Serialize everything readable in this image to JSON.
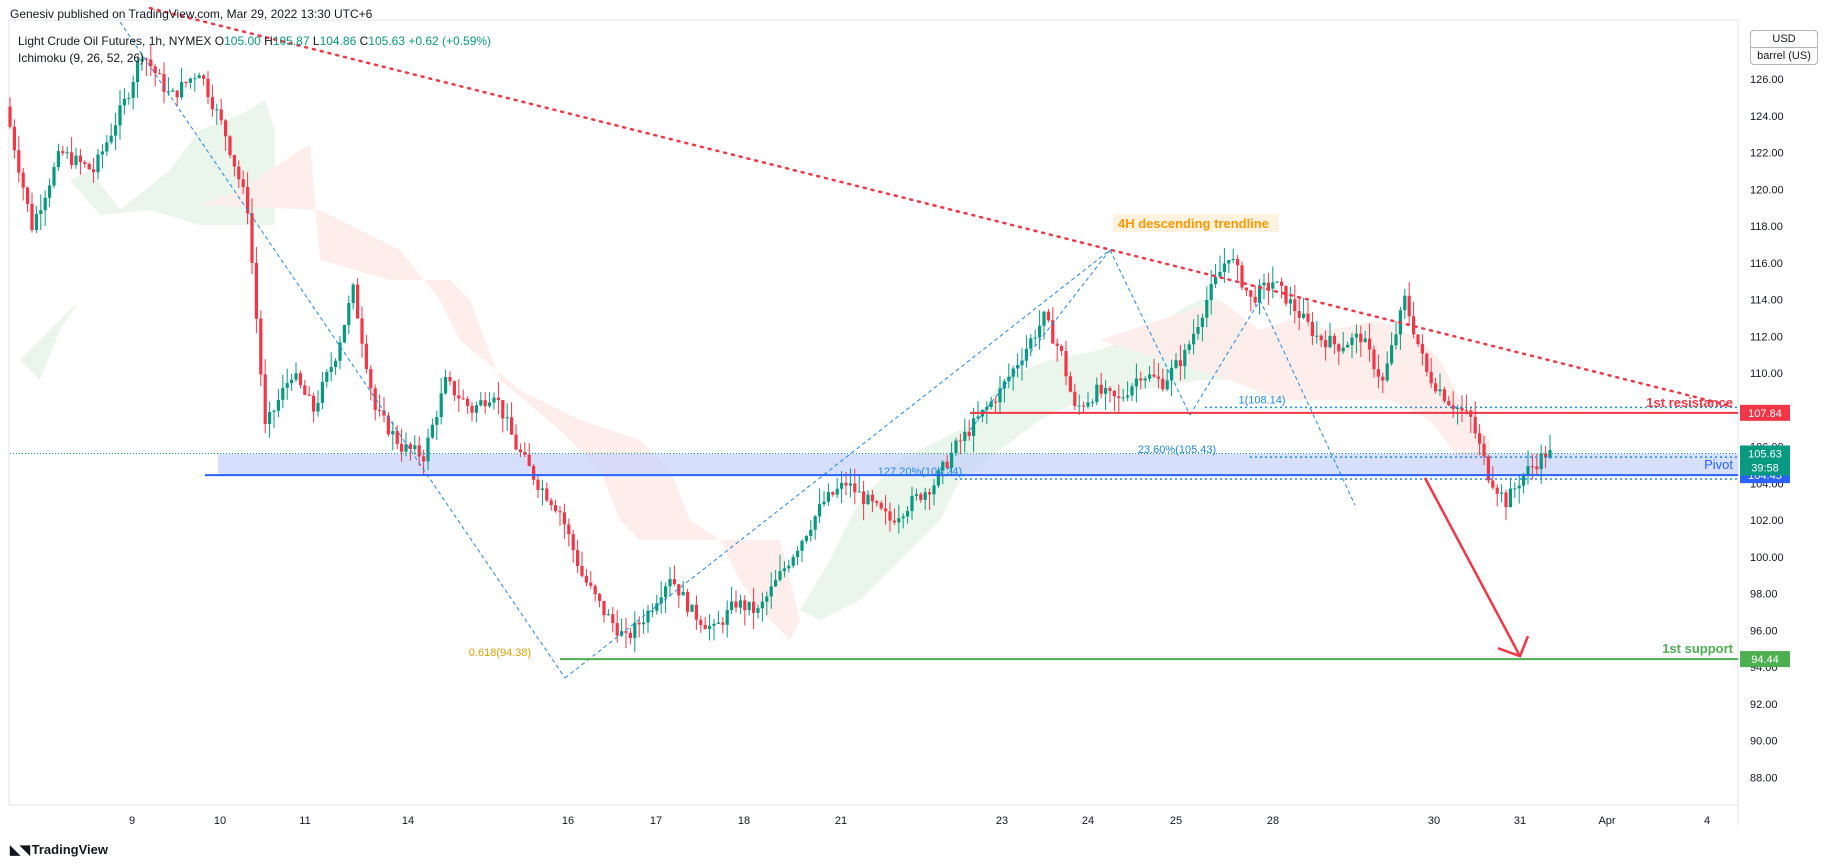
{
  "publisher_line": "Genesiv published on TradingView.com, Mar 29, 2022 13:30 UTC+6",
  "legend": {
    "symbol": "Light Crude Oil Futures, 1h, NYMEX",
    "open_label": "O",
    "open": "105.00",
    "high_label": "H",
    "high": "105.87",
    "low_label": "L",
    "low": "104.86",
    "close_label": "C",
    "close": "105.63",
    "change": "+0.62 (+0.59%)",
    "indicator": "Ichimoku (9, 26, 52, 26)"
  },
  "unit_box": {
    "currency": "USD",
    "unit": "barrel (US)"
  },
  "footer": {
    "brand": "TradingView"
  },
  "colors": {
    "up": "#089981",
    "down": "#f23645",
    "trendline": "#f23645",
    "pivot": "#2962ff",
    "support": "#4caf50",
    "fib": "#1e88e5",
    "cloud_bull": "#e8f5e9",
    "cloud_bear": "#fdecea"
  },
  "chart_data": {
    "type": "candlestick",
    "ylim": [
      86.5,
      129
    ],
    "y_ticks": [
      "88.00",
      "90.00",
      "92.00",
      "94.00",
      "96.00",
      "98.00",
      "100.00",
      "102.00",
      "104.00",
      "106.00",
      "108.00",
      "110.00",
      "112.00",
      "114.00",
      "116.00",
      "118.00",
      "120.00",
      "122.00",
      "124.00",
      "126.00"
    ],
    "x_ticks": [
      "9",
      "10",
      "11",
      "14",
      "16",
      "17",
      "18",
      "21",
      "23",
      "24",
      "25",
      "28",
      "30",
      "31",
      "Apr",
      "4"
    ],
    "close_path": [
      {
        "x": 0,
        "y": 124.5
      },
      {
        "x": 12,
        "y": 118
      },
      {
        "x": 25,
        "y": 122
      },
      {
        "x": 40,
        "y": 121
      },
      {
        "x": 55,
        "y": 125
      },
      {
        "x": 62,
        "y": 127.5
      },
      {
        "x": 75,
        "y": 125
      },
      {
        "x": 88,
        "y": 126.5
      },
      {
        "x": 100,
        "y": 123
      },
      {
        "x": 110,
        "y": 119
      },
      {
        "x": 118,
        "y": 107
      },
      {
        "x": 130,
        "y": 110
      },
      {
        "x": 140,
        "y": 108
      },
      {
        "x": 150,
        "y": 111
      },
      {
        "x": 158,
        "y": 114.5
      },
      {
        "x": 168,
        "y": 108
      },
      {
        "x": 180,
        "y": 106
      },
      {
        "x": 190,
        "y": 105.5
      },
      {
        "x": 200,
        "y": 109.5
      },
      {
        "x": 212,
        "y": 108
      },
      {
        "x": 222,
        "y": 109
      },
      {
        "x": 232,
        "y": 106
      },
      {
        "x": 242,
        "y": 104
      },
      {
        "x": 252,
        "y": 102.5
      },
      {
        "x": 262,
        "y": 99
      },
      {
        "x": 272,
        "y": 97
      },
      {
        "x": 282,
        "y": 95.5
      },
      {
        "x": 292,
        "y": 97
      },
      {
        "x": 302,
        "y": 99
      },
      {
        "x": 312,
        "y": 97
      },
      {
        "x": 322,
        "y": 96
      },
      {
        "x": 332,
        "y": 97.5
      },
      {
        "x": 342,
        "y": 97
      },
      {
        "x": 352,
        "y": 99
      },
      {
        "x": 362,
        "y": 101
      },
      {
        "x": 372,
        "y": 103
      },
      {
        "x": 382,
        "y": 104
      },
      {
        "x": 392,
        "y": 103
      },
      {
        "x": 402,
        "y": 102
      },
      {
        "x": 412,
        "y": 103
      },
      {
        "x": 422,
        "y": 104
      },
      {
        "x": 432,
        "y": 106
      },
      {
        "x": 442,
        "y": 107.5
      },
      {
        "x": 452,
        "y": 109
      },
      {
        "x": 462,
        "y": 111
      },
      {
        "x": 472,
        "y": 113
      },
      {
        "x": 480,
        "y": 111
      },
      {
        "x": 486,
        "y": 108
      },
      {
        "x": 496,
        "y": 109
      },
      {
        "x": 506,
        "y": 108.5
      },
      {
        "x": 516,
        "y": 110
      },
      {
        "x": 526,
        "y": 109.5
      },
      {
        "x": 536,
        "y": 111
      },
      {
        "x": 546,
        "y": 114
      },
      {
        "x": 556,
        "y": 116.5
      },
      {
        "x": 566,
        "y": 114
      },
      {
        "x": 576,
        "y": 115
      },
      {
        "x": 586,
        "y": 113.5
      },
      {
        "x": 596,
        "y": 112
      },
      {
        "x": 606,
        "y": 111.5
      },
      {
        "x": 616,
        "y": 112
      },
      {
        "x": 626,
        "y": 109.5
      },
      {
        "x": 636,
        "y": 114
      },
      {
        "x": 646,
        "y": 110
      },
      {
        "x": 656,
        "y": 108.5
      },
      {
        "x": 666,
        "y": 107.5
      },
      {
        "x": 674,
        "y": 104.5
      },
      {
        "x": 682,
        "y": 103
      },
      {
        "x": 690,
        "y": 104.5
      },
      {
        "x": 700,
        "y": 105.6
      }
    ],
    "trendline": {
      "label": "4H descending trendline",
      "start": {
        "x": 0,
        "y": 131.5
      },
      "end": {
        "x": 860,
        "y": 108.2
      }
    },
    "levels": [
      {
        "name": "1st resistance",
        "value": 107.84,
        "label": "107.84"
      },
      {
        "name": "Pivot",
        "value": 104.45,
        "label": "104.45"
      },
      {
        "name": "1st support",
        "value": 94.44,
        "label": "94.44"
      }
    ],
    "fib_labels": [
      {
        "text": "1(108.14)",
        "value": 108.14
      },
      {
        "text": "23.60%(105.43)",
        "value": 105.43
      },
      {
        "text": "127.20%(104.24)",
        "value": 104.24
      },
      {
        "text": "0.618(94.38)",
        "value": 94.38
      }
    ],
    "last_price": {
      "value": 105.63,
      "label": "105.63",
      "countdown": "39:58"
    },
    "projection": {
      "from": {
        "x": 700,
        "y": 104.3
      },
      "to": {
        "x": 750,
        "y": 94.6
      }
    }
  }
}
